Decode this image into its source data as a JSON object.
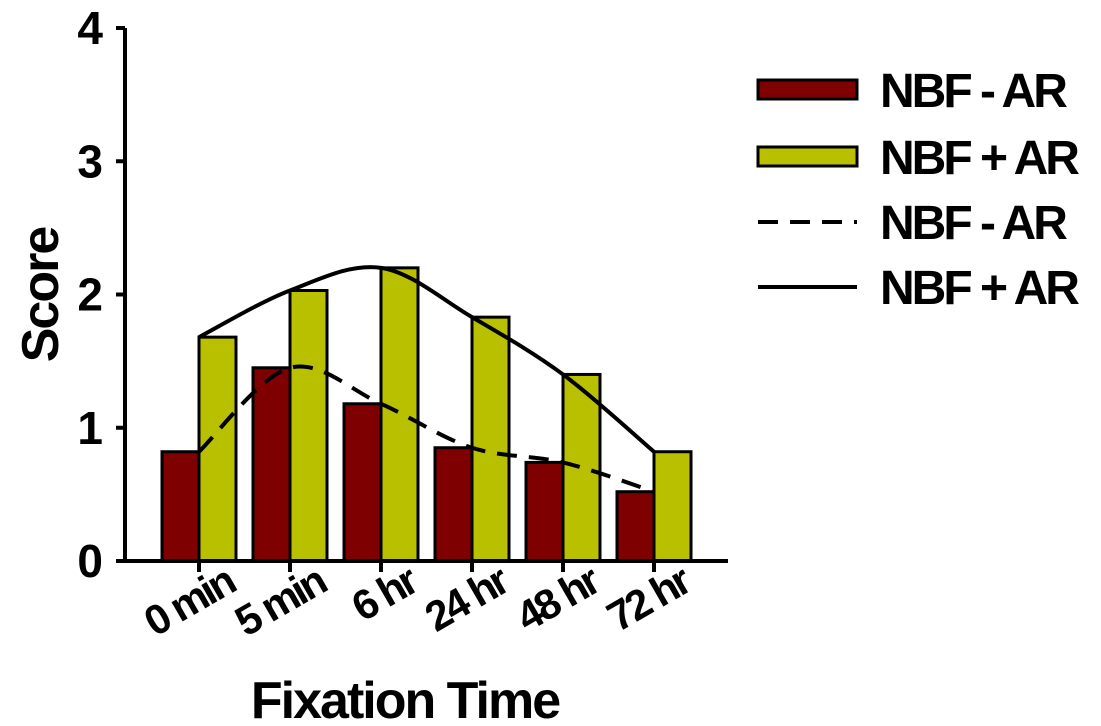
{
  "chart_data": {
    "type": "bar",
    "categories": [
      "0 min",
      "5 min",
      "6 hr",
      "24 hr",
      "48 hr",
      "72 hr"
    ],
    "series": [
      {
        "name": "NBF - AR",
        "kind": "bar",
        "color": "#7f0000",
        "values": [
          0.82,
          1.45,
          1.18,
          0.85,
          0.74,
          0.52
        ]
      },
      {
        "name": "NBF + AR",
        "kind": "bar",
        "color": "#b8c000",
        "values": [
          1.68,
          2.03,
          2.2,
          1.83,
          1.4,
          0.82
        ]
      },
      {
        "name": "NBF - AR",
        "kind": "line",
        "line_style": "dashed",
        "color": "#000000",
        "values": [
          0.82,
          1.45,
          1.18,
          0.85,
          0.74,
          0.52
        ]
      },
      {
        "name": "NBF + AR",
        "kind": "line",
        "line_style": "solid",
        "color": "#000000",
        "values": [
          1.68,
          2.03,
          2.2,
          1.83,
          1.4,
          0.82
        ]
      }
    ],
    "title": "",
    "xlabel": "Fixation Time",
    "ylabel": "Score",
    "ylim": [
      0,
      4
    ],
    "yticks": [
      0,
      1,
      2,
      3,
      4
    ],
    "grid": false,
    "legend_position": "right"
  }
}
